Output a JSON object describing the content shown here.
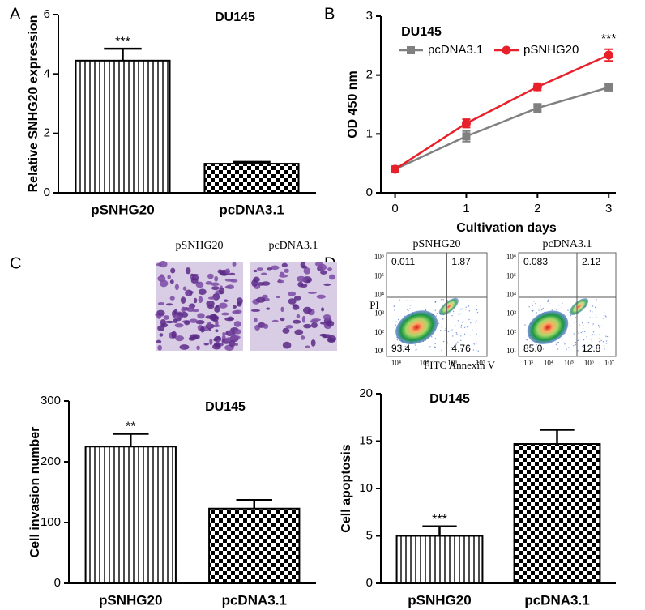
{
  "panels": {
    "letters": [
      "A",
      "B",
      "C",
      "D"
    ]
  },
  "micrographs": {
    "labels": [
      "pSNHG20",
      "pcDNA3.1"
    ]
  },
  "flow": {
    "y_label": "PI",
    "x_label": "FITC Annexin V",
    "plots": [
      {
        "name": "pSNHG20",
        "quadrants": [
          "0.011",
          "1.87",
          "93.4",
          "4.76"
        ],
        "yticks": [
          "10⁶",
          "10⁵",
          "10⁴",
          "10³",
          "10²",
          "10¹"
        ],
        "xticks": [
          "10⁴",
          "10⁵",
          "10⁶",
          "10⁷"
        ]
      },
      {
        "name": "pcDNA3.1",
        "quadrants": [
          "0.083",
          "2.12",
          "85.0",
          "12.8"
        ],
        "yticks": [
          "10⁶",
          "10⁵",
          "10⁴",
          "10³",
          "10²",
          "10¹"
        ],
        "xticks": [
          "10³",
          "10⁴",
          "10⁵",
          "10⁶",
          "10⁷"
        ]
      }
    ]
  },
  "chart_data": [
    {
      "type": "bar",
      "title": "DU145",
      "ylabel": "Relative SNHG20 expression",
      "categories": [
        "pSNHG20",
        "pcDNA3.1"
      ],
      "values": [
        4.45,
        0.98
      ],
      "errors": [
        0.4,
        0.06
      ],
      "patterns": [
        "stripes",
        "checker"
      ],
      "significance": [
        "***",
        null
      ],
      "ylim": [
        0,
        6
      ],
      "yticks": [
        0,
        2,
        4,
        6
      ]
    },
    {
      "type": "line",
      "title": "DU145",
      "xlabel": "Cultivation days",
      "ylabel": "OD 450 nm",
      "x": [
        0,
        1,
        2,
        3
      ],
      "xlim": [
        -0.2,
        3.1
      ],
      "xticks": [
        0,
        1,
        2,
        3
      ],
      "ylim": [
        0,
        3
      ],
      "yticks": [
        0,
        1,
        2,
        3
      ],
      "legend": "upper left",
      "series": [
        {
          "name": "pcDNA3.1",
          "color": "#808080",
          "marker": "square",
          "values": [
            0.4,
            0.96,
            1.44,
            1.79
          ],
          "errors": [
            0.03,
            0.09,
            0.07,
            0.05
          ]
        },
        {
          "name": "pSNHG20",
          "color": "#e8202a",
          "marker": "circle",
          "values": [
            0.4,
            1.18,
            1.8,
            2.34
          ],
          "errors": [
            0.03,
            0.07,
            0.06,
            0.1
          ]
        }
      ],
      "significance": [
        null,
        null,
        null,
        "***"
      ]
    },
    {
      "type": "bar",
      "title": "DU145",
      "ylabel": "Cell invasion number",
      "categories": [
        "pSNHG20",
        "pcDNA3.1"
      ],
      "values": [
        225,
        123
      ],
      "errors": [
        21,
        14
      ],
      "patterns": [
        "stripes",
        "checker"
      ],
      "significance": [
        "**",
        null
      ],
      "ylim": [
        0,
        300
      ],
      "yticks": [
        0,
        100,
        200,
        300
      ]
    },
    {
      "type": "bar",
      "title": "DU145",
      "ylabel": "Cell apoptosis",
      "categories": [
        "pSNHG20",
        "pcDNA3.1"
      ],
      "values": [
        5.0,
        14.7
      ],
      "errors": [
        1.0,
        1.5
      ],
      "patterns": [
        "stripes",
        "checker"
      ],
      "significance": [
        "***",
        null
      ],
      "ylim": [
        0,
        20
      ],
      "yticks": [
        0,
        5,
        10,
        15,
        20
      ]
    }
  ]
}
